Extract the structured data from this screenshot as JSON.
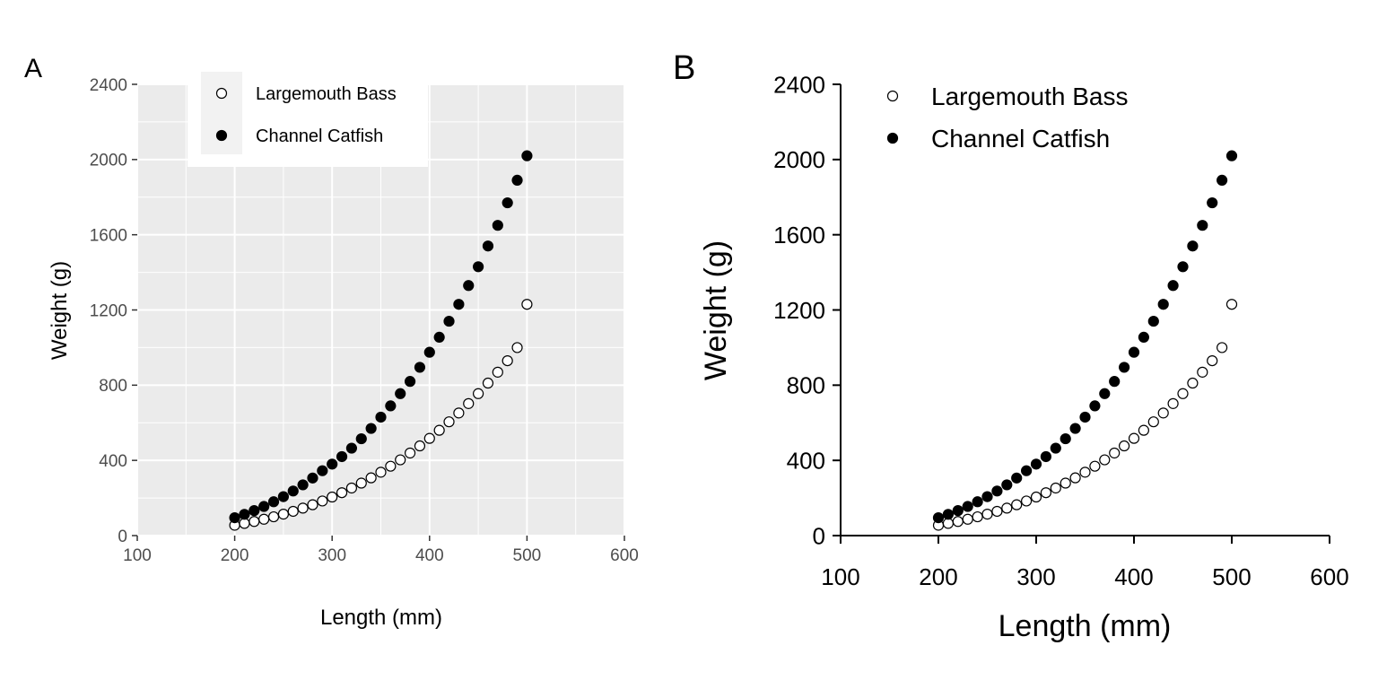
{
  "chart_data": [
    {
      "panel_label": "A",
      "type": "scatter",
      "style": "grey-background-with-white-grid",
      "xlabel": "Length (mm)",
      "ylabel": "Weight (g)",
      "xlim": [
        100,
        600
      ],
      "ylim": [
        0,
        2400
      ],
      "xticks": [
        "100",
        "200",
        "300",
        "400",
        "500",
        "600"
      ],
      "yticks": [
        "0",
        "400",
        "800",
        "1200",
        "1600",
        "2000",
        "2400"
      ],
      "legend_position": "top-left-inside",
      "series": [
        {
          "name": "Largemouth Bass",
          "marker": "open-circle",
          "x": [
            200,
            210,
            220,
            230,
            240,
            250,
            260,
            270,
            280,
            290,
            300,
            310,
            320,
            330,
            340,
            350,
            360,
            370,
            380,
            390,
            400,
            410,
            420,
            430,
            440,
            450,
            460,
            470,
            480,
            490,
            500
          ],
          "y": [
            55,
            65,
            75,
            87,
            100,
            114,
            129,
            146,
            164,
            184,
            205,
            228,
            253,
            279,
            307,
            337,
            369,
            403,
            439,
            477,
            517,
            560,
            605,
            652,
            702,
            755,
            811,
            869,
            930,
            1000,
            1230
          ]
        },
        {
          "name": "Channel Catfish",
          "marker": "filled-circle",
          "x": [
            200,
            210,
            220,
            230,
            240,
            250,
            260,
            270,
            280,
            290,
            300,
            310,
            320,
            330,
            340,
            350,
            360,
            370,
            380,
            390,
            400,
            410,
            420,
            430,
            440,
            450,
            460,
            470,
            480,
            490,
            500
          ],
          "y": [
            95,
            113,
            133,
            155,
            180,
            207,
            237,
            270,
            306,
            345,
            380,
            420,
            465,
            515,
            570,
            630,
            690,
            755,
            820,
            895,
            975,
            1055,
            1140,
            1230,
            1330,
            1430,
            1540,
            1650,
            1770,
            1890,
            2020
          ]
        }
      ]
    },
    {
      "panel_label": "B",
      "type": "scatter",
      "style": "classic-axes-no-grid",
      "xlabel": "Length (mm)",
      "ylabel": "Weight (g)",
      "xlim": [
        100,
        600
      ],
      "ylim": [
        0,
        2400
      ],
      "xticks": [
        "100",
        "200",
        "300",
        "400",
        "500",
        "600"
      ],
      "yticks": [
        "0",
        "400",
        "800",
        "1200",
        "1600",
        "2000",
        "2400"
      ],
      "legend_position": "top-left-inside",
      "series": [
        {
          "name": "Largemouth Bass",
          "marker": "open-circle",
          "x": [
            200,
            210,
            220,
            230,
            240,
            250,
            260,
            270,
            280,
            290,
            300,
            310,
            320,
            330,
            340,
            350,
            360,
            370,
            380,
            390,
            400,
            410,
            420,
            430,
            440,
            450,
            460,
            470,
            480,
            490,
            500
          ],
          "y": [
            55,
            65,
            75,
            87,
            100,
            114,
            129,
            146,
            164,
            184,
            205,
            228,
            253,
            279,
            307,
            337,
            369,
            403,
            439,
            477,
            517,
            560,
            605,
            652,
            702,
            755,
            811,
            869,
            930,
            1000,
            1230
          ]
        },
        {
          "name": "Channel Catfish",
          "marker": "filled-circle",
          "x": [
            200,
            210,
            220,
            230,
            240,
            250,
            260,
            270,
            280,
            290,
            300,
            310,
            320,
            330,
            340,
            350,
            360,
            370,
            380,
            390,
            400,
            410,
            420,
            430,
            440,
            450,
            460,
            470,
            480,
            490,
            500
          ],
          "y": [
            95,
            113,
            133,
            155,
            180,
            207,
            237,
            270,
            306,
            345,
            380,
            420,
            465,
            515,
            570,
            630,
            690,
            755,
            820,
            895,
            975,
            1055,
            1140,
            1230,
            1330,
            1430,
            1540,
            1650,
            1770,
            1890,
            2020
          ]
        }
      ]
    }
  ]
}
